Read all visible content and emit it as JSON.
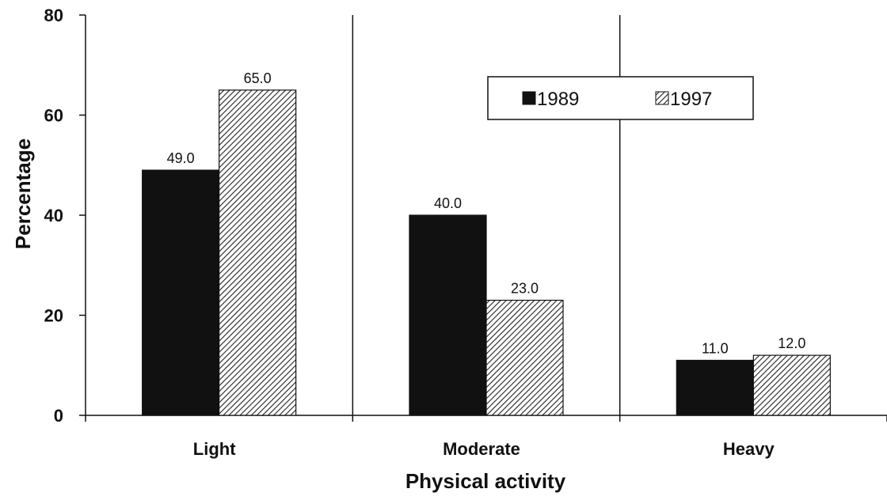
{
  "chart_data": {
    "type": "bar",
    "title": "",
    "xlabel": "Physical activity",
    "ylabel": "Percentage",
    "ylim": [
      0,
      80
    ],
    "yticks": [
      0,
      20,
      40,
      60,
      80
    ],
    "categories": [
      "Light",
      "Moderate",
      "Heavy"
    ],
    "series": [
      {
        "name": "1989",
        "values": [
          49.0,
          40.0,
          11.0
        ],
        "value_labels": [
          "49.0",
          "40.0",
          "11.0"
        ],
        "fill": "#111111",
        "pattern": "solid"
      },
      {
        "name": "1997",
        "values": [
          65.0,
          23.0,
          12.0
        ],
        "value_labels": [
          "65.0",
          "23.0",
          "12.0"
        ],
        "fill": "#ffffff",
        "pattern": "diagonal-hatch"
      }
    ],
    "legend": {
      "placement": "top-right",
      "entries": [
        "1989",
        "1997"
      ]
    },
    "grid": false,
    "category_separators": true
  }
}
